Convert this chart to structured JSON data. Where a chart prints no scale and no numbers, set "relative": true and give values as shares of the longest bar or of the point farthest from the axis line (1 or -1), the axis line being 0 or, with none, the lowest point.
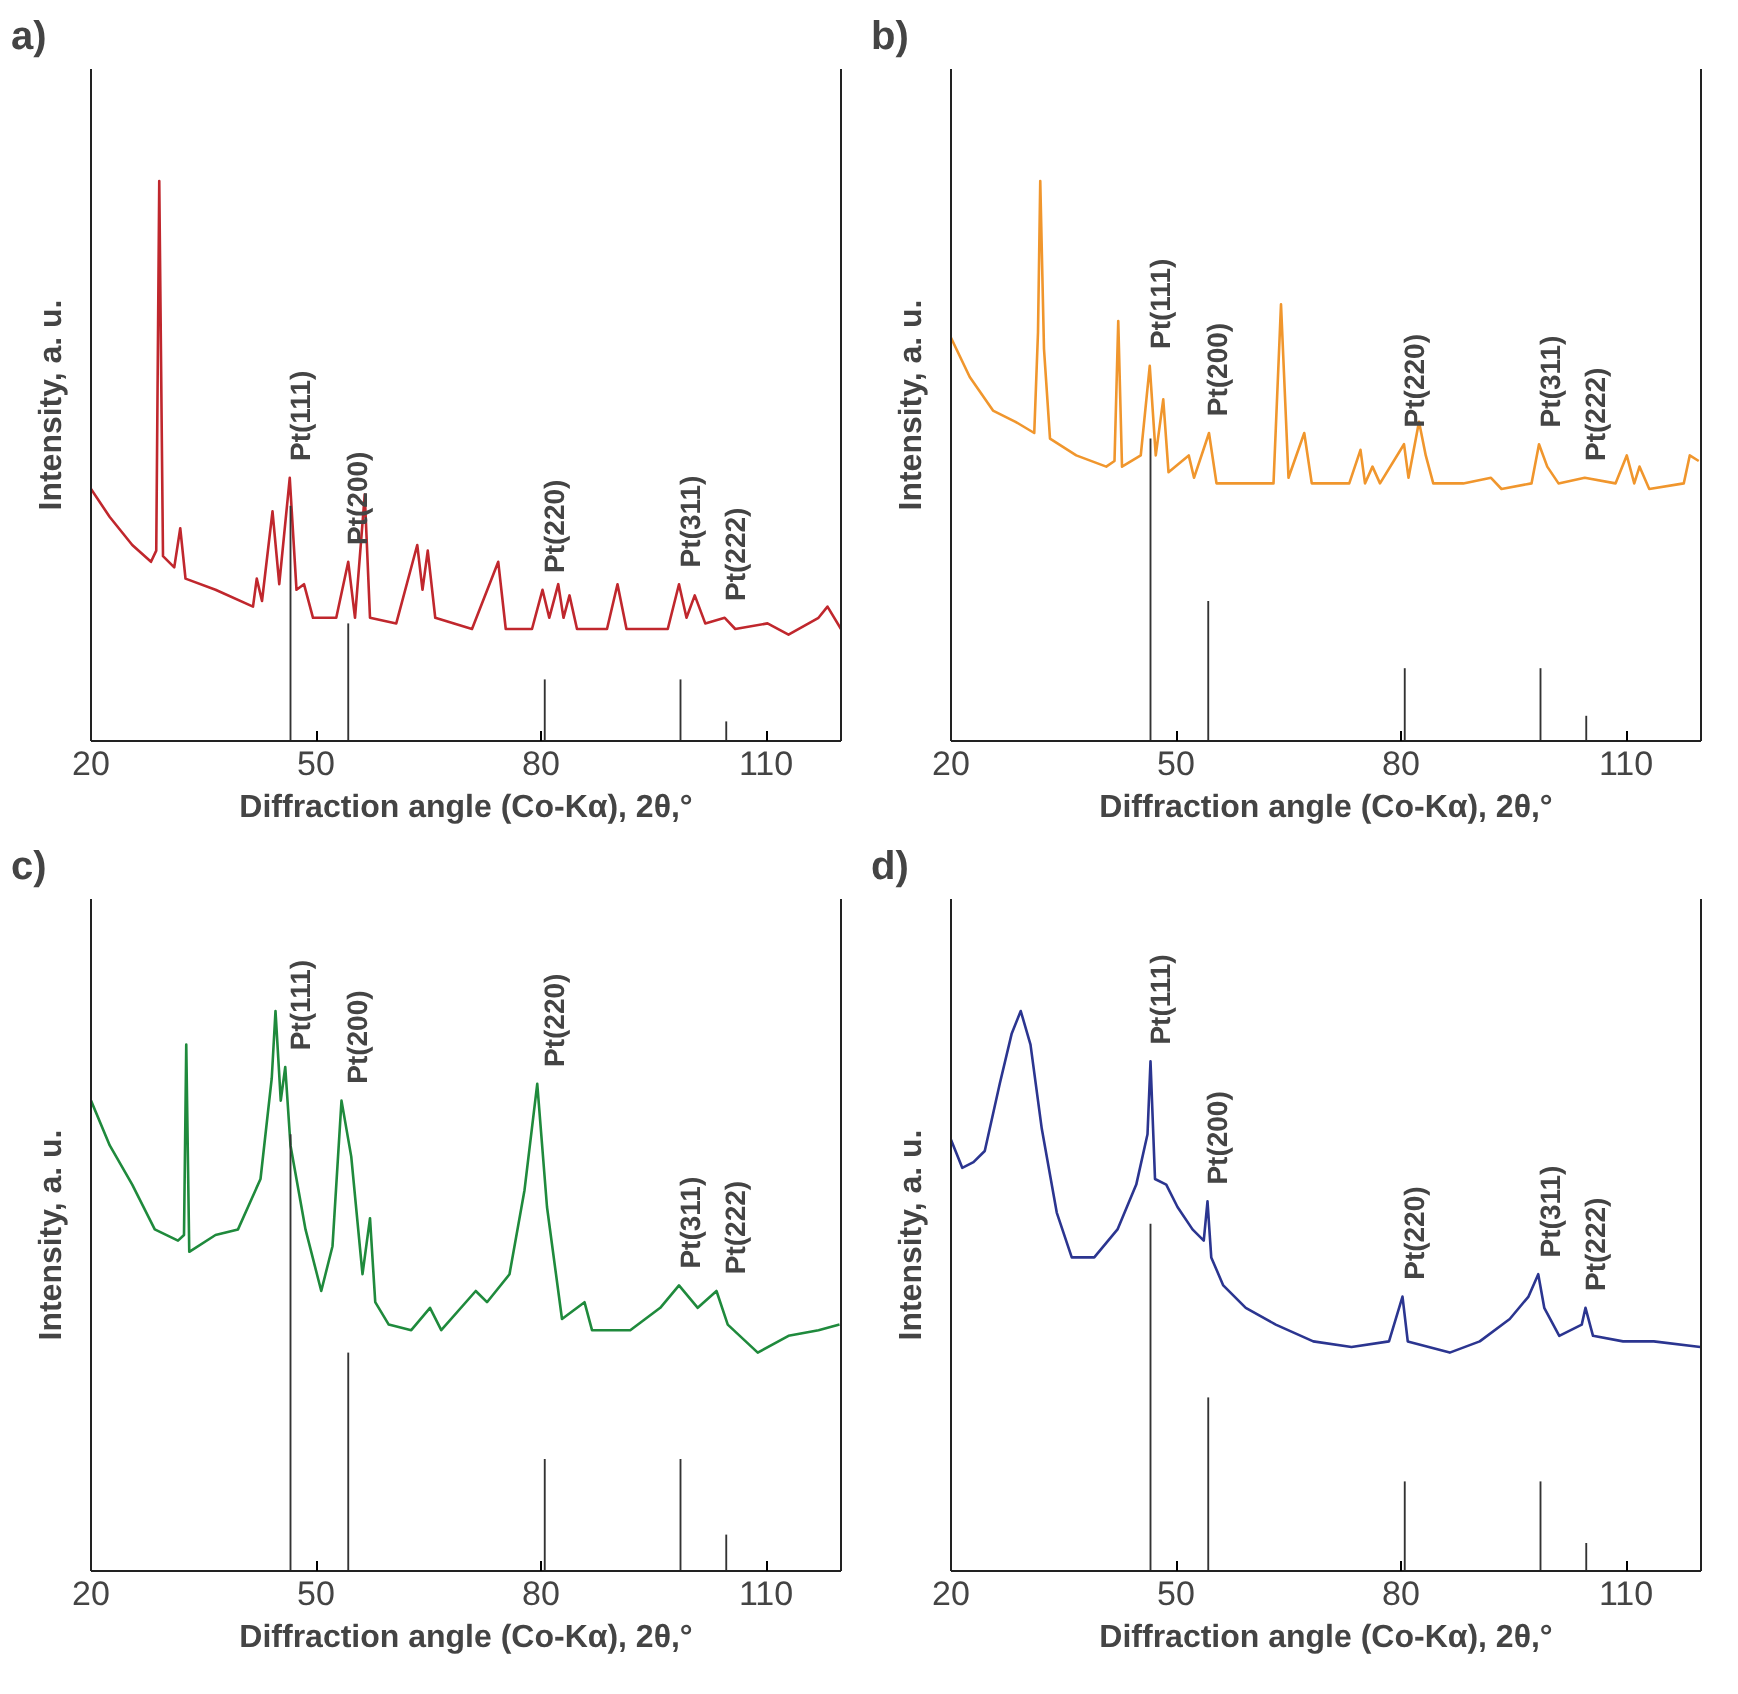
{
  "chart_data": [
    {
      "type": "line",
      "title": "a)",
      "xlabel": "Diffraction angle (Co-Kα), 2θ,°",
      "ylabel": "Intensity, a. u.",
      "relative": true,
      "xlim": [
        20,
        120
      ],
      "xticks": [
        20,
        50,
        80,
        110
      ],
      "tick_labels": "x",
      "grid": false,
      "series": [
        {
          "color": "#c0272d",
          "x": [
            20.0,
            22.5,
            25.5,
            28.0,
            28.7,
            29.1,
            29.6,
            31.1,
            31.9,
            32.6,
            36.6,
            41.6,
            42.1,
            42.8,
            44.2,
            45.1,
            46.5,
            47.4,
            48.4,
            49.6,
            52.7,
            54.3,
            55.2,
            56.5,
            57.2,
            60.7,
            63.5,
            64.2,
            64.9,
            65.9,
            70.8,
            74.3,
            75.3,
            78.8,
            80.2,
            81.1,
            82.3,
            83.0,
            83.8,
            84.8,
            88.8,
            90.2,
            91.4,
            96.9,
            98.4,
            99.4,
            100.5,
            101.9,
            104.5,
            105.9,
            110.2,
            113.0,
            117.0,
            118.2,
            120.0
          ],
          "values": [
            0.45,
            0.4,
            0.35,
            0.32,
            0.34,
            1.0,
            0.33,
            0.31,
            0.38,
            0.29,
            0.27,
            0.24,
            0.29,
            0.25,
            0.41,
            0.28,
            0.47,
            0.27,
            0.28,
            0.22,
            0.22,
            0.32,
            0.22,
            0.44,
            0.22,
            0.21,
            0.35,
            0.27,
            0.34,
            0.22,
            0.2,
            0.32,
            0.2,
            0.2,
            0.27,
            0.22,
            0.28,
            0.22,
            0.26,
            0.2,
            0.2,
            0.28,
            0.2,
            0.2,
            0.28,
            0.22,
            0.26,
            0.21,
            0.22,
            0.2,
            0.21,
            0.19,
            0.22,
            0.24,
            0.2
          ]
        },
        {
          "type": "bar",
          "color": "#333333",
          "x": [
            46.6,
            54.3,
            80.5,
            98.6,
            104.7
          ],
          "values": [
            0.42,
            0.21,
            0.11,
            0.11,
            0.035
          ]
        }
      ],
      "annotations": [
        "Pt(111)",
        "Pt(200)",
        "Pt(220)",
        "Pt(311)",
        "Pt(222)"
      ]
    },
    {
      "type": "line",
      "title": "b)",
      "xlabel": "Diffraction angle (Co-Kα), 2θ,°",
      "ylabel": "Intensity, a. u.",
      "relative": true,
      "xlim": [
        20,
        120
      ],
      "xticks": [
        20,
        50,
        80,
        110
      ],
      "tick_labels": "x",
      "grid": false,
      "series": [
        {
          "color": "#f0962d",
          "x": [
            20.0,
            22.5,
            25.6,
            28.6,
            31.1,
            31.6,
            31.9,
            32.4,
            33.2,
            36.7,
            40.7,
            41.8,
            42.3,
            42.8,
            45.3,
            46.5,
            47.3,
            48.3,
            49.0,
            51.7,
            52.4,
            54.4,
            55.4,
            59.0,
            63.0,
            64.0,
            65.0,
            67.1,
            68.1,
            73.1,
            74.6,
            75.2,
            76.2,
            77.2,
            80.4,
            81.0,
            82.4,
            83.3,
            84.3,
            88.3,
            92.0,
            93.4,
            97.4,
            98.4,
            99.5,
            101.0,
            104.5,
            108.6,
            110.1,
            111.1,
            111.8,
            113.1,
            117.7,
            118.5,
            119.7
          ],
          "values": [
            0.72,
            0.65,
            0.59,
            0.57,
            0.55,
            0.73,
            1.0,
            0.7,
            0.54,
            0.51,
            0.49,
            0.5,
            0.75,
            0.49,
            0.51,
            0.67,
            0.51,
            0.61,
            0.48,
            0.51,
            0.47,
            0.55,
            0.46,
            0.46,
            0.46,
            0.78,
            0.47,
            0.55,
            0.46,
            0.46,
            0.52,
            0.46,
            0.49,
            0.46,
            0.53,
            0.47,
            0.57,
            0.51,
            0.46,
            0.46,
            0.47,
            0.45,
            0.46,
            0.53,
            0.49,
            0.46,
            0.47,
            0.46,
            0.51,
            0.46,
            0.49,
            0.45,
            0.46,
            0.51,
            0.5
          ]
        },
        {
          "type": "bar",
          "color": "#333333",
          "x": [
            46.6,
            54.3,
            80.5,
            98.6,
            104.7
          ],
          "values": [
            0.54,
            0.25,
            0.13,
            0.13,
            0.045
          ]
        }
      ],
      "annotations": [
        "Pt(111)",
        "Pt(200)",
        "Pt(220)",
        "Pt(311)",
        "Pt(222)"
      ]
    },
    {
      "type": "line",
      "title": "c)",
      "xlabel": "Diffraction angle (Co-Kα), 2θ,°",
      "ylabel": "Intensity, a. u.",
      "relative": true,
      "xlim": [
        20,
        120
      ],
      "xticks": [
        20,
        50,
        80,
        110
      ],
      "tick_labels": "x",
      "grid": false,
      "series": [
        {
          "color": "#1f8a3c",
          "x": [
            20.0,
            22.5,
            25.5,
            28.5,
            31.6,
            32.4,
            32.7,
            33.1,
            36.6,
            39.6,
            42.6,
            44.1,
            44.6,
            45.3,
            45.9,
            46.6,
            48.6,
            50.7,
            52.2,
            53.4,
            54.7,
            56.2,
            57.2,
            57.9,
            59.7,
            62.7,
            65.2,
            66.7,
            71.3,
            72.8,
            75.8,
            77.8,
            79.5,
            80.8,
            82.8,
            85.8,
            86.8,
            91.9,
            95.9,
            98.4,
            100.9,
            103.4,
            104.9,
            108.9,
            113.0,
            117.0,
            119.8
          ],
          "values": [
            0.84,
            0.76,
            0.69,
            0.61,
            0.59,
            0.6,
            0.94,
            0.57,
            0.6,
            0.61,
            0.7,
            0.88,
            1.0,
            0.84,
            0.9,
            0.76,
            0.61,
            0.5,
            0.58,
            0.84,
            0.74,
            0.53,
            0.63,
            0.48,
            0.44,
            0.43,
            0.47,
            0.43,
            0.5,
            0.48,
            0.53,
            0.68,
            0.87,
            0.65,
            0.45,
            0.48,
            0.43,
            0.43,
            0.47,
            0.51,
            0.47,
            0.5,
            0.44,
            0.39,
            0.42,
            0.43,
            0.44
          ]
        },
        {
          "type": "bar",
          "color": "#333333",
          "x": [
            46.6,
            54.3,
            80.5,
            98.6,
            104.7
          ],
          "values": [
            0.78,
            0.39,
            0.2,
            0.2,
            0.065
          ]
        }
      ],
      "annotations": [
        "Pt(111)",
        "Pt(200)",
        "Pt(220)",
        "Pt(311)",
        "Pt(222)"
      ]
    },
    {
      "type": "line",
      "title": "d)",
      "xlabel": "Diffraction angle (Co-Kα), 2θ,°",
      "ylabel": "Intensity, a. u.",
      "relative": true,
      "xlim": [
        20,
        120
      ],
      "xticks": [
        20,
        50,
        80,
        110
      ],
      "tick_labels": "x",
      "grid": false,
      "series": [
        {
          "color": "#2b3590",
          "x": [
            20.0,
            21.5,
            23.0,
            24.5,
            26.5,
            28.1,
            29.3,
            30.6,
            32.1,
            34.1,
            36.1,
            39.1,
            42.2,
            44.7,
            46.2,
            46.6,
            47.2,
            48.7,
            50.2,
            52.2,
            53.7,
            54.2,
            54.7,
            56.3,
            59.3,
            63.3,
            68.3,
            73.4,
            78.4,
            80.2,
            80.9,
            86.5,
            90.5,
            94.5,
            97.0,
            98.3,
            99.1,
            101.1,
            104.1,
            104.6,
            105.6,
            109.6,
            113.7,
            119.9
          ],
          "values": [
            0.77,
            0.72,
            0.73,
            0.75,
            0.87,
            0.96,
            1.0,
            0.94,
            0.79,
            0.64,
            0.56,
            0.56,
            0.61,
            0.69,
            0.78,
            0.91,
            0.7,
            0.69,
            0.65,
            0.61,
            0.59,
            0.66,
            0.56,
            0.51,
            0.47,
            0.44,
            0.41,
            0.4,
            0.41,
            0.49,
            0.41,
            0.39,
            0.41,
            0.45,
            0.49,
            0.53,
            0.47,
            0.42,
            0.44,
            0.47,
            0.42,
            0.41,
            0.41,
            0.4
          ]
        },
        {
          "type": "bar",
          "color": "#333333",
          "x": [
            46.6,
            54.3,
            80.5,
            98.6,
            104.7
          ],
          "values": [
            0.62,
            0.31,
            0.16,
            0.16,
            0.05
          ]
        }
      ],
      "annotations": [
        "Pt(111)",
        "Pt(200)",
        "Pt(220)",
        "Pt(311)",
        "Pt(222)"
      ]
    }
  ]
}
